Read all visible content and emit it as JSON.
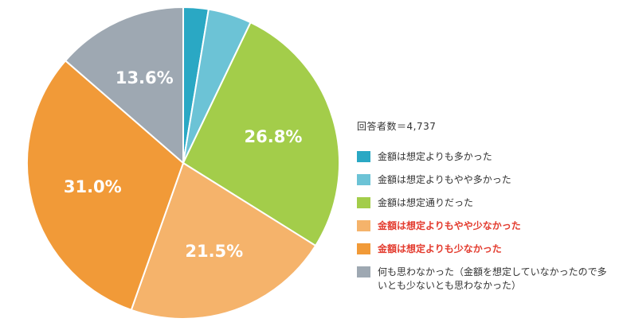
{
  "chart_data": {
    "type": "pie",
    "respondents_label": "回答者数＝4,737",
    "start_angle_deg": 0,
    "direction": "clockwise",
    "slices": [
      {
        "label": "金額は想定よりも多かった",
        "value": 2.6,
        "value_label": "",
        "color": "#2aa8c4",
        "highlight": false
      },
      {
        "label": "金額は想定よりもやや多かった",
        "value": 4.5,
        "value_label": "",
        "color": "#6cc3d6",
        "highlight": false
      },
      {
        "label": "金額は想定通りだった",
        "value": 26.8,
        "value_label": "26.8%",
        "color": "#a3cd4a",
        "highlight": false
      },
      {
        "label": "金額は想定よりもやや少なかった",
        "value": 21.5,
        "value_label": "21.5%",
        "color": "#f5b36b",
        "highlight": true
      },
      {
        "label": "金額は想定よりも少なかった",
        "value": 31.0,
        "value_label": "31.0%",
        "color": "#f19a38",
        "highlight": true
      },
      {
        "label": "何も思わなかった（金額を想定していなかったので多いとも少ないとも思わなかった）",
        "value": 13.6,
        "value_label": "13.6%",
        "color": "#9ea8b2",
        "highlight": false
      }
    ]
  }
}
